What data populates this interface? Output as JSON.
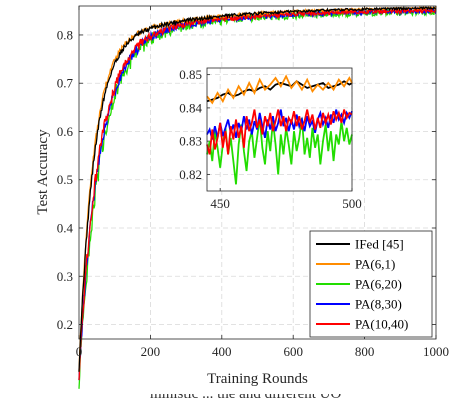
{
  "chart_data": {
    "type": "line",
    "title": "",
    "xlabel": "Training Rounds",
    "ylabel": "Test Accuracy",
    "xlim": [
      0,
      1000
    ],
    "ylim": [
      0.17,
      0.86
    ],
    "xticks": [
      "0",
      "200",
      "400",
      "600",
      "800",
      "1000"
    ],
    "yticks": [
      "0.2",
      "0.3",
      "0.4",
      "0.5",
      "0.6",
      "0.7",
      "0.8"
    ],
    "grid": true,
    "legend_position": "bottom-right",
    "series": [
      {
        "name": "IFed [45]",
        "color": "#000000",
        "final": 0.858,
        "start": 0.19,
        "rate": 42,
        "noise": 0.002
      },
      {
        "name": "PA(6,1)",
        "color": "#ff8c00",
        "final": 0.858,
        "start": 0.19,
        "rate": 40,
        "noise": 0.002
      },
      {
        "name": "PA(6,20)",
        "color": "#22dd00",
        "final": 0.85,
        "start": 0.17,
        "rate": 58,
        "noise": 0.006
      },
      {
        "name": "PA(8,30)",
        "color": "#0000ff",
        "final": 0.852,
        "start": 0.18,
        "rate": 56,
        "noise": 0.004
      },
      {
        "name": "PA(10,40)",
        "color": "#ff0000",
        "final": 0.853,
        "start": 0.18,
        "rate": 54,
        "noise": 0.004
      }
    ],
    "inset": {
      "xlim": [
        445,
        500
      ],
      "ylim": [
        0.815,
        0.852
      ],
      "xticks": [
        "450",
        "500"
      ],
      "yticks": [
        "0.82",
        "0.83",
        "0.84",
        "0.85"
      ],
      "series": [
        {
          "name": "IFed [45]",
          "x": [
            445,
            447,
            449,
            451,
            453,
            455,
            457,
            459,
            461,
            463,
            465,
            467,
            469,
            471,
            473,
            475,
            477,
            479,
            481,
            483,
            485,
            487,
            489,
            491,
            493,
            495,
            497,
            499,
            500
          ],
          "y": [
            0.842,
            0.8425,
            0.843,
            0.844,
            0.8445,
            0.8435,
            0.844,
            0.845,
            0.8455,
            0.845,
            0.846,
            0.8465,
            0.8455,
            0.847,
            0.8475,
            0.847,
            0.8465,
            0.848,
            0.847,
            0.846,
            0.8465,
            0.847,
            0.8475,
            0.846,
            0.8465,
            0.847,
            0.848,
            0.847,
            0.8475
          ]
        },
        {
          "name": "PA(6,1)",
          "x": [
            445,
            447,
            449,
            451,
            453,
            455,
            457,
            459,
            461,
            463,
            465,
            467,
            469,
            471,
            473,
            475,
            477,
            479,
            481,
            483,
            485,
            487,
            489,
            491,
            493,
            495,
            497,
            499,
            500
          ],
          "y": [
            0.8435,
            0.8415,
            0.8445,
            0.842,
            0.8455,
            0.843,
            0.8465,
            0.844,
            0.8475,
            0.8445,
            0.8485,
            0.8455,
            0.847,
            0.849,
            0.8465,
            0.8495,
            0.846,
            0.848,
            0.8455,
            0.8485,
            0.845,
            0.847,
            0.8455,
            0.8475,
            0.8455,
            0.8485,
            0.8465,
            0.849,
            0.8475
          ]
        },
        {
          "name": "PA(6,20)",
          "x": [
            445,
            446,
            447,
            448,
            449,
            450,
            451,
            452,
            453,
            454,
            455,
            456,
            457,
            458,
            459,
            460,
            461,
            462,
            463,
            464,
            465,
            466,
            467,
            468,
            469,
            470,
            471,
            472,
            473,
            474,
            475,
            476,
            477,
            478,
            479,
            480,
            481,
            482,
            483,
            484,
            485,
            486,
            487,
            488,
            489,
            490,
            491,
            492,
            493,
            494,
            495,
            496,
            497,
            498,
            499,
            500
          ],
          "y": [
            0.826,
            0.83,
            0.824,
            0.833,
            0.828,
            0.822,
            0.829,
            0.834,
            0.826,
            0.831,
            0.824,
            0.817,
            0.829,
            0.835,
            0.827,
            0.821,
            0.83,
            0.833,
            0.825,
            0.831,
            0.837,
            0.828,
            0.823,
            0.833,
            0.827,
            0.836,
            0.829,
            0.82,
            0.832,
            0.826,
            0.834,
            0.829,
            0.823,
            0.833,
            0.827,
            0.831,
            0.837,
            0.826,
            0.831,
            0.825,
            0.834,
            0.828,
            0.832,
            0.823,
            0.83,
            0.835,
            0.827,
            0.833,
            0.824,
            0.832,
            0.829,
            0.836,
            0.83,
            0.834,
            0.829,
            0.832
          ]
        },
        {
          "name": "PA(8,30)",
          "x": [
            445,
            446,
            447,
            448,
            449,
            450,
            451,
            452,
            453,
            454,
            455,
            456,
            457,
            458,
            459,
            460,
            461,
            462,
            463,
            464,
            465,
            466,
            467,
            468,
            469,
            470,
            471,
            472,
            473,
            474,
            475,
            476,
            477,
            478,
            479,
            480,
            481,
            482,
            483,
            484,
            485,
            486,
            487,
            488,
            489,
            490,
            491,
            492,
            493,
            494,
            495,
            496,
            497,
            498,
            499,
            500
          ],
          "y": [
            0.832,
            0.8335,
            0.8305,
            0.8345,
            0.831,
            0.8355,
            0.8315,
            0.834,
            0.8365,
            0.8325,
            0.835,
            0.831,
            0.8355,
            0.833,
            0.8375,
            0.8335,
            0.8365,
            0.832,
            0.836,
            0.8335,
            0.8385,
            0.8345,
            0.831,
            0.8365,
            0.8335,
            0.8375,
            0.833,
            0.8355,
            0.8395,
            0.8345,
            0.837,
            0.833,
            0.8365,
            0.8335,
            0.838,
            0.8345,
            0.8365,
            0.833,
            0.8375,
            0.8345,
            0.836,
            0.8325,
            0.8365,
            0.8385,
            0.835,
            0.837,
            0.834,
            0.838,
            0.8355,
            0.8395,
            0.8365,
            0.838,
            0.8355,
            0.8385,
            0.837,
            0.839
          ]
        },
        {
          "name": "PA(10,40)",
          "x": [
            445,
            446,
            447,
            448,
            449,
            450,
            451,
            452,
            453,
            454,
            455,
            456,
            457,
            458,
            459,
            460,
            461,
            462,
            463,
            464,
            465,
            466,
            467,
            468,
            469,
            470,
            471,
            472,
            473,
            474,
            475,
            476,
            477,
            478,
            479,
            480,
            481,
            482,
            483,
            484,
            485,
            486,
            487,
            488,
            489,
            490,
            491,
            492,
            493,
            494,
            495,
            496,
            497,
            498,
            499,
            500
          ],
          "y": [
            0.829,
            0.826,
            0.8335,
            0.8275,
            0.831,
            0.8355,
            0.828,
            0.833,
            0.826,
            0.8345,
            0.8305,
            0.8365,
            0.831,
            0.8345,
            0.828,
            0.8375,
            0.833,
            0.8355,
            0.8395,
            0.834,
            0.8365,
            0.832,
            0.8375,
            0.8345,
            0.8385,
            0.833,
            0.836,
            0.8395,
            0.8345,
            0.8375,
            0.833,
            0.837,
            0.8355,
            0.839,
            0.8345,
            0.8375,
            0.8335,
            0.836,
            0.8395,
            0.8355,
            0.838,
            0.8335,
            0.837,
            0.834,
            0.8385,
            0.8355,
            0.838,
            0.835,
            0.839,
            0.8365,
            0.8385,
            0.8355,
            0.8395,
            0.837,
            0.8385,
            0.838
          ]
        }
      ]
    }
  },
  "caption_fragment": "ministic ... the and different UO"
}
